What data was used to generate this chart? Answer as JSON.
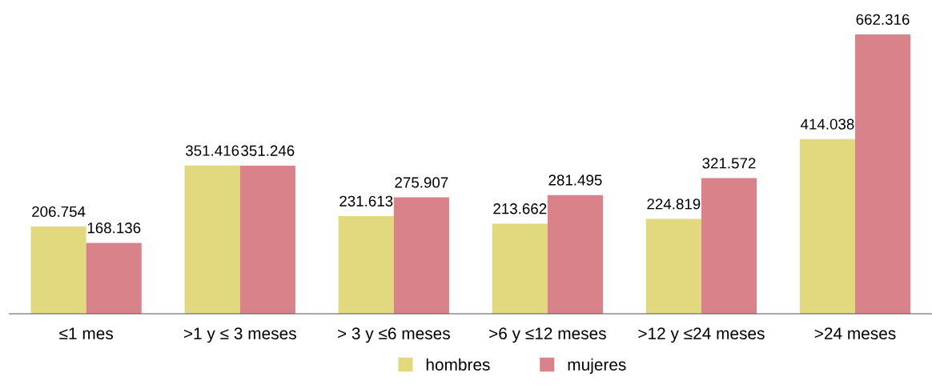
{
  "chart_data": {
    "type": "bar",
    "categories": [
      "≤1 mes",
      ">1 y ≤ 3 meses",
      "> 3 y ≤6 meses",
      ">6 y ≤12 meses",
      ">12 y ≤24 meses",
      ">24 meses"
    ],
    "series": [
      {
        "name": "hombres",
        "color": "#e2d87e",
        "values": [
          206.754,
          351.416,
          231.613,
          213.662,
          224.819,
          414.038
        ]
      },
      {
        "name": "mujeres",
        "color": "#d9828a",
        "values": [
          168.136,
          351.246,
          275.907,
          281.495,
          321.572,
          662.316
        ]
      }
    ],
    "data_labels": true,
    "legend": "bottom",
    "grid": false
  }
}
